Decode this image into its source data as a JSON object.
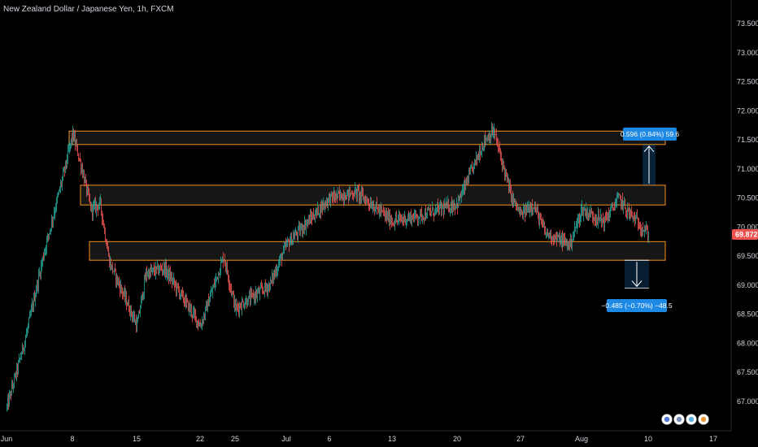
{
  "header": {
    "symbol_title": "New Zealand Dollar / Japanese Yen, 1h, FXCM"
  },
  "colors": {
    "background": "#000000",
    "up": "#26a69a",
    "down": "#ef5350",
    "zone_border": "#f7931a",
    "zone_fill": "#1a1a1a",
    "measure": "#1e88e5",
    "price_tag": "#ef5350",
    "axis_text": "#d1d4dc",
    "axis_line": "#2a2e39"
  },
  "current_price": "69.872",
  "measurements": {
    "up": "0.596 (0.84%) 59.6",
    "down": "−0.485 (−0.70%) −48.5"
  },
  "chart_data": {
    "type": "candlestick",
    "title": "New Zealand Dollar / Japanese Yen, 1h, FXCM",
    "xlabel": "",
    "ylabel": "",
    "ylim": [
      66.5,
      73.8
    ],
    "x_ticks": [
      "Jun",
      "8",
      "15",
      "22",
      "25",
      "Jul",
      "6",
      "13",
      "20",
      "27",
      "Aug",
      "10",
      "17"
    ],
    "y_ticks": [
      "67.000",
      "67.500",
      "68.000",
      "68.500",
      "69.000",
      "69.500",
      "70.000",
      "70.500",
      "71.000",
      "71.500",
      "72.000",
      "72.500",
      "73.000",
      "73.500"
    ],
    "price_path_keypoints": [
      {
        "x": "Jun",
        "y": 66.9
      },
      {
        "x": "Jun 3",
        "y": 68.1
      },
      {
        "x": "Jun 5",
        "y": 69.6
      },
      {
        "x": "Jun 7",
        "y": 70.9
      },
      {
        "x": "Jun 8",
        "y": 71.6
      },
      {
        "x": "Jun 9",
        "y": 71.0
      },
      {
        "x": "Jun 10",
        "y": 70.3
      },
      {
        "x": "Jun 11",
        "y": 70.4
      },
      {
        "x": "Jun 12",
        "y": 69.4
      },
      {
        "x": "Jun 15",
        "y": 68.3
      },
      {
        "x": "Jun 16",
        "y": 69.2
      },
      {
        "x": "Jun 18",
        "y": 69.3
      },
      {
        "x": "Jun 22",
        "y": 68.3
      },
      {
        "x": "Jun 24",
        "y": 69.5
      },
      {
        "x": "Jun 25",
        "y": 68.6
      },
      {
        "x": "Jun 29",
        "y": 69.0
      },
      {
        "x": "Jul",
        "y": 69.7
      },
      {
        "x": "Jul 6",
        "y": 70.5
      },
      {
        "x": "Jul 9",
        "y": 70.6
      },
      {
        "x": "Jul 13",
        "y": 70.1
      },
      {
        "x": "Jul 16",
        "y": 70.2
      },
      {
        "x": "Jul 20",
        "y": 70.4
      },
      {
        "x": "Jul 23",
        "y": 71.5
      },
      {
        "x": "Jul 24",
        "y": 71.65
      },
      {
        "x": "Jul 26",
        "y": 70.5
      },
      {
        "x": "Jul 27",
        "y": 70.2
      },
      {
        "x": "Jul 28",
        "y": 70.4
      },
      {
        "x": "Jul 29",
        "y": 69.9
      },
      {
        "x": "Jul 31",
        "y": 69.7
      },
      {
        "x": "Aug",
        "y": 70.3
      },
      {
        "x": "Aug 4",
        "y": 70.1
      },
      {
        "x": "Aug 6",
        "y": 70.5
      },
      {
        "x": "Aug 7",
        "y": 70.3
      },
      {
        "x": "Aug 10",
        "y": 69.872
      }
    ],
    "zones": [
      {
        "top": 71.65,
        "bottom": 71.42
      },
      {
        "top": 70.72,
        "bottom": 70.38
      },
      {
        "top": 69.75,
        "bottom": 69.43
      }
    ],
    "grid": false,
    "legend": "none"
  }
}
